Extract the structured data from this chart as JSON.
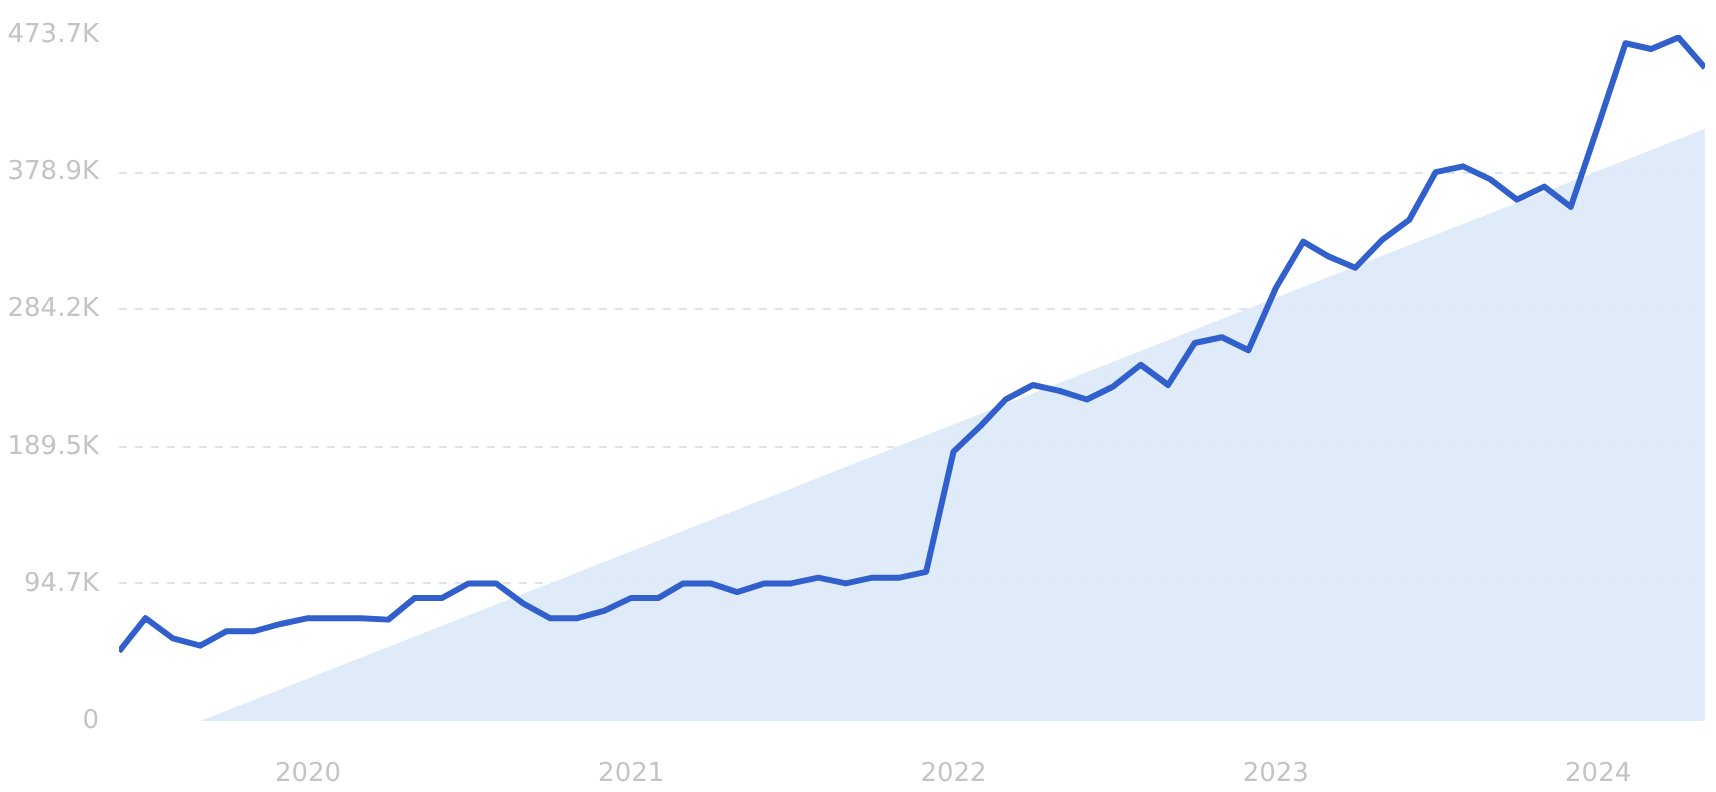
{
  "chart_data": {
    "type": "line",
    "x": [
      "2019-06",
      "2019-07",
      "2019-08",
      "2019-09",
      "2019-10",
      "2019-11",
      "2019-12",
      "2020-01",
      "2020-02",
      "2020-03",
      "2020-04",
      "2020-05",
      "2020-06",
      "2020-07",
      "2020-08",
      "2020-09",
      "2020-10",
      "2020-11",
      "2020-12",
      "2021-01",
      "2021-02",
      "2021-03",
      "2021-04",
      "2021-05",
      "2021-06",
      "2021-07",
      "2021-08",
      "2021-09",
      "2021-10",
      "2021-11",
      "2021-12",
      "2022-01",
      "2022-02",
      "2022-03",
      "2022-04",
      "2022-05",
      "2022-06",
      "2022-07",
      "2022-08",
      "2022-09",
      "2022-10",
      "2022-11",
      "2022-12",
      "2023-01",
      "2023-02",
      "2023-03",
      "2023-04",
      "2023-05",
      "2023-06",
      "2023-07",
      "2023-08",
      "2023-09",
      "2023-10",
      "2023-11",
      "2023-12",
      "2024-01",
      "2024-02",
      "2024-03",
      "2024-04",
      "2024-05"
    ],
    "series": [
      {
        "type": "area",
        "color": "#dde9fa",
        "x": [
          "2019-09",
          "2024-05"
        ],
        "values": [
          0,
          409000
        ]
      },
      {
        "color": "#3160cc",
        "values": [
          48000,
          71000,
          57000,
          52000,
          62000,
          62000,
          67000,
          71000,
          71000,
          71000,
          70000,
          85000,
          85000,
          95000,
          95000,
          81000,
          71000,
          71000,
          76000,
          85000,
          85000,
          95000,
          95000,
          89000,
          95000,
          95000,
          99000,
          95000,
          99000,
          99000,
          103000,
          186000,
          204000,
          222000,
          232000,
          228000,
          222000,
          231000,
          246000,
          232000,
          261000,
          265000,
          256000,
          299000,
          331000,
          321000,
          313000,
          332000,
          346000,
          379000,
          383000,
          374000,
          360000,
          369000,
          355000,
          411000,
          468000,
          464000,
          472000,
          451000
        ]
      }
    ],
    "xlim": [
      "2019-06",
      "2024-05"
    ],
    "xticks": [
      "2020",
      "2021",
      "2022",
      "2023",
      "2024"
    ],
    "ylim": [
      0,
      473700
    ],
    "yticks": [
      0,
      {
        "value": 94700,
        "label": "94.7K"
      },
      {
        "value": 189500,
        "label": "189.5K"
      },
      {
        "value": 284200,
        "label": "284.2K"
      },
      {
        "value": 378900,
        "label": "378.9K"
      },
      {
        "value": 473700,
        "label": "473.7K"
      }
    ],
    "grid": "y",
    "line_style": "solid",
    "marker": "none"
  }
}
